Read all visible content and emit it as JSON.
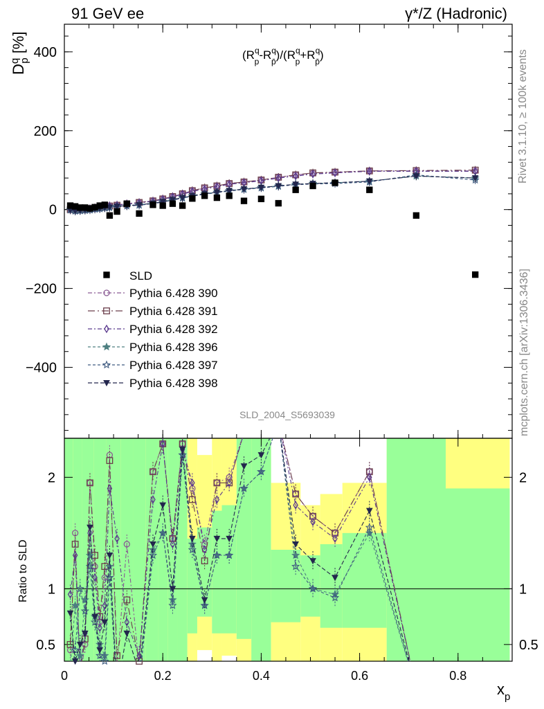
{
  "header": {
    "left": "91 GeV ee",
    "right": "γ*/Z (Hadronic)"
  },
  "side_text": {
    "rivet": "Rivet 3.1.10, ≥ 100k events",
    "mcplots": "mcplots.cern.ch [arXiv:1306.3436]"
  },
  "chart_data": {
    "type": "scatter",
    "analysis_id": "SLD_2004_S5693039",
    "formula": "(R_p^q − R_p̄^q)/(R_p^q + R_p̄^q)",
    "ylabel": "D_p^q [%]",
    "xlabel": "x_p",
    "ratio_ylabel": "Ratio to SLD",
    "xlim": [
      0,
      0.91
    ],
    "ylim": [
      -580,
      470
    ],
    "ratio_ylim": [
      0.35,
      2.35
    ],
    "x_ticks": [
      "0",
      "0.2",
      "0.4",
      "0.6",
      "0.8"
    ],
    "y_ticks": [
      "−400",
      "−200",
      "0",
      "200",
      "400"
    ],
    "ratio_ticks": [
      "0.5",
      "1",
      "2"
    ],
    "legend_position": "middle-left",
    "data": {
      "name": "SLD",
      "color": "#000000",
      "x": [
        0.012,
        0.022,
        0.032,
        0.042,
        0.052,
        0.062,
        0.072,
        0.082,
        0.092,
        0.107,
        0.127,
        0.152,
        0.18,
        0.2,
        0.22,
        0.24,
        0.26,
        0.285,
        0.31,
        0.335,
        0.365,
        0.4,
        0.435,
        0.47,
        0.505,
        0.55,
        0.62,
        0.715,
        0.835
      ],
      "y": [
        10,
        8,
        5,
        5,
        3,
        6,
        10,
        12,
        -15,
        -5,
        15,
        -10,
        12,
        10,
        15,
        10,
        28,
        35,
        30,
        35,
        22,
        27,
        16,
        50,
        60,
        68,
        50,
        -15,
        -165
      ]
    },
    "series": [
      {
        "name": "Pythia 6.428 390",
        "color": "#8a5a93",
        "marker": "circle-open",
        "dash": "6 3 2 3",
        "x": [
          0.012,
          0.022,
          0.032,
          0.042,
          0.052,
          0.062,
          0.072,
          0.082,
          0.092,
          0.107,
          0.127,
          0.152,
          0.18,
          0.2,
          0.22,
          0.24,
          0.26,
          0.285,
          0.31,
          0.335,
          0.365,
          0.4,
          0.435,
          0.47,
          0.505,
          0.55,
          0.62,
          0.715,
          0.835
        ],
        "y": [
          0,
          0,
          1,
          2,
          3,
          5,
          6,
          8,
          10,
          12,
          15,
          18,
          22,
          27,
          33,
          40,
          48,
          55,
          60,
          66,
          70,
          75,
          82,
          88,
          92,
          95,
          98,
          98,
          98
        ],
        "ratio": [
          0.45,
          1.5,
          0.2,
          0.5,
          1.95,
          1.2,
          0.7,
          1.1,
          2.2,
          0.3,
          1.4,
          0.3,
          2.05,
          2.3,
          1.45,
          2.3,
          1.9,
          1.4,
          1.95,
          2.0,
          2.4,
          2.4,
          2.5,
          1.85,
          1.65,
          1.5,
          2.05,
          0.1,
          0.1
        ]
      },
      {
        "name": "Pythia 6.428 391",
        "color": "#6a3d4a",
        "marker": "square-open",
        "dash": "10 4 2 4",
        "x": [
          0.012,
          0.022,
          0.032,
          0.042,
          0.052,
          0.062,
          0.072,
          0.082,
          0.092,
          0.107,
          0.127,
          0.152,
          0.18,
          0.2,
          0.22,
          0.24,
          0.26,
          0.285,
          0.31,
          0.335,
          0.365,
          0.4,
          0.435,
          0.47,
          0.505,
          0.55,
          0.62,
          0.715,
          0.835
        ],
        "y": [
          0,
          -1,
          0,
          1,
          2,
          4,
          5,
          7,
          9,
          11,
          14,
          18,
          22,
          27,
          33,
          40,
          48,
          55,
          60,
          66,
          70,
          75,
          82,
          88,
          93,
          95,
          98,
          99,
          100
        ],
        "ratio": [
          0.5,
          1.4,
          0.25,
          0.55,
          1.95,
          1.3,
          0.75,
          1.2,
          2.15,
          0.4,
          0.9,
          0.35,
          2.05,
          2.3,
          1.45,
          2.3,
          1.8,
          1.25,
          1.95,
          1.95,
          2.4,
          2.4,
          2.5,
          1.85,
          1.65,
          1.5,
          2.05,
          0.1,
          0.1
        ]
      },
      {
        "name": "Pythia 6.428 392",
        "color": "#5b3a8e",
        "marker": "diamond-open",
        "dash": "6 3 2 3",
        "x": [
          0.012,
          0.022,
          0.032,
          0.042,
          0.052,
          0.062,
          0.072,
          0.082,
          0.092,
          0.107,
          0.127,
          0.152,
          0.18,
          0.2,
          0.22,
          0.24,
          0.26,
          0.285,
          0.31,
          0.335,
          0.365,
          0.4,
          0.435,
          0.47,
          0.505,
          0.55,
          0.62,
          0.715,
          0.835
        ],
        "y": [
          0,
          -2,
          -1,
          0,
          2,
          3,
          5,
          7,
          9,
          11,
          14,
          17,
          21,
          26,
          32,
          39,
          46,
          52,
          58,
          64,
          68,
          73,
          80,
          85,
          90,
          93,
          97,
          97,
          97
        ],
        "ratio": [
          0.95,
          1.3,
          0.3,
          0.6,
          1.5,
          1.1,
          0.65,
          0.85,
          1.9,
          1.45,
          0.7,
          0.4,
          1.8,
          2.3,
          1.4,
          2.25,
          1.95,
          1.35,
          1.8,
          1.95,
          2.4,
          2.4,
          2.5,
          1.75,
          1.6,
          1.45,
          2.0,
          0.1,
          0.1
        ]
      },
      {
        "name": "Pythia 6.428 396",
        "color": "#4d7f80",
        "marker": "star-filled",
        "dash": "4 3",
        "x": [
          0.012,
          0.022,
          0.032,
          0.042,
          0.052,
          0.062,
          0.072,
          0.082,
          0.092,
          0.107,
          0.127,
          0.152,
          0.18,
          0.2,
          0.22,
          0.24,
          0.26,
          0.285,
          0.31,
          0.335,
          0.365,
          0.4,
          0.435,
          0.47,
          0.505,
          0.55,
          0.62,
          0.715,
          0.835
        ],
        "y": [
          0,
          -3,
          -2,
          -1,
          0,
          2,
          3,
          5,
          6,
          8,
          10,
          12,
          16,
          20,
          25,
          30,
          35,
          40,
          44,
          48,
          52,
          56,
          60,
          64,
          66,
          68,
          72,
          85,
          80
        ],
        "ratio": [
          0.3,
          0.85,
          0.4,
          0.9,
          1.3,
          0.75,
          0.5,
          0.4,
          1.2,
          0.1,
          0.15,
          0.2,
          1.35,
          1.5,
          0.9,
          2.2,
          1.4,
          0.85,
          1.3,
          1.3,
          1.9,
          2.05,
          2.5,
          1.3,
          1.0,
          0.95,
          1.5,
          0.1,
          0.1
        ]
      },
      {
        "name": "Pythia 6.428 397",
        "color": "#3e5a80",
        "marker": "star-open",
        "dash": "4 3",
        "x": [
          0.012,
          0.022,
          0.032,
          0.042,
          0.052,
          0.062,
          0.072,
          0.082,
          0.092,
          0.107,
          0.127,
          0.152,
          0.18,
          0.2,
          0.22,
          0.24,
          0.26,
          0.285,
          0.31,
          0.335,
          0.365,
          0.4,
          0.435,
          0.47,
          0.505,
          0.55,
          0.62,
          0.715,
          0.835
        ],
        "y": [
          -1,
          -4,
          -3,
          -2,
          -1,
          1,
          2,
          4,
          5,
          7,
          9,
          11,
          15,
          19,
          24,
          29,
          34,
          39,
          43,
          47,
          51,
          55,
          59,
          63,
          65,
          66,
          70,
          88,
          75
        ],
        "ratio": [
          0.2,
          0.45,
          1.0,
          0.8,
          1.2,
          0.7,
          0.4,
          0.35,
          1.1,
          0.1,
          0.2,
          0.15,
          1.3,
          1.5,
          0.85,
          2.2,
          1.35,
          0.85,
          1.3,
          1.3,
          1.9,
          2.05,
          2.5,
          1.2,
          1.0,
          0.92,
          1.55,
          0.1,
          0.1
        ]
      },
      {
        "name": "Pythia 6.428 398",
        "color": "#23264d",
        "marker": "triangle-down",
        "dash": "6 3",
        "x": [
          0.012,
          0.022,
          0.032,
          0.042,
          0.052,
          0.062,
          0.072,
          0.082,
          0.092,
          0.107,
          0.127,
          0.152,
          0.18,
          0.2,
          0.22,
          0.24,
          0.26,
          0.285,
          0.31,
          0.335,
          0.365,
          0.4,
          0.435,
          0.47,
          0.505,
          0.55,
          0.62,
          0.715,
          0.835
        ],
        "y": [
          -1,
          -3,
          -2,
          -1,
          0,
          2,
          3,
          5,
          6,
          8,
          10,
          12,
          16,
          20,
          25,
          30,
          35,
          40,
          44,
          48,
          52,
          56,
          60,
          64,
          66,
          68,
          72,
          85,
          80
        ],
        "ratio": [
          0.78,
          0.35,
          0.5,
          0.6,
          1.55,
          0.75,
          0.45,
          0.7,
          1.3,
          0.1,
          0.6,
          0.25,
          1.4,
          1.75,
          1.0,
          2.25,
          1.45,
          0.9,
          1.45,
          1.45,
          2.1,
          2.2,
          2.5,
          1.4,
          1.25,
          1.1,
          1.7,
          0.1,
          0.1
        ]
      }
    ],
    "ratio_bands": [
      {
        "x0": 0.0,
        "x1": 0.018,
        "green": [
          0.0,
          2.5
        ],
        "yellow": [
          0.0,
          2.5
        ]
      },
      {
        "x0": 0.018,
        "x1": 0.036,
        "green": [
          0.0,
          2.5
        ],
        "yellow": [
          0.0,
          2.5
        ]
      },
      {
        "x0": 0.036,
        "x1": 0.06,
        "green": [
          0.0,
          2.5
        ],
        "yellow": [
          0.0,
          2.5
        ]
      },
      {
        "x0": 0.06,
        "x1": 0.085,
        "green": [
          0.0,
          2.5
        ],
        "yellow": [
          0.0,
          2.5
        ]
      },
      {
        "x0": 0.085,
        "x1": 0.115,
        "green": [
          0.0,
          2.5
        ],
        "yellow": [
          0.0,
          2.5
        ]
      },
      {
        "x0": 0.115,
        "x1": 0.14,
        "green": [
          0.0,
          2.5
        ],
        "yellow": [
          0.0,
          2.5
        ]
      },
      {
        "x0": 0.14,
        "x1": 0.165,
        "green": [
          0.0,
          2.5
        ],
        "yellow": [
          0.0,
          2.5
        ]
      },
      {
        "x0": 0.165,
        "x1": 0.19,
        "green": [
          0.0,
          2.5
        ],
        "yellow": [
          0.0,
          2.5
        ]
      },
      {
        "x0": 0.19,
        "x1": 0.21,
        "green": [
          0.0,
          2.5
        ],
        "yellow": [
          0.0,
          2.5
        ]
      },
      {
        "x0": 0.21,
        "x1": 0.23,
        "green": [
          0.0,
          2.5
        ],
        "yellow": [
          0.0,
          2.5
        ]
      },
      {
        "x0": 0.23,
        "x1": 0.25,
        "green": [
          0.35,
          2.5
        ],
        "yellow": [
          0.0,
          2.5
        ]
      },
      {
        "x0": 0.25,
        "x1": 0.27,
        "green": [
          0.6,
          1.45
        ],
        "yellow": [
          0.35,
          2.5
        ]
      },
      {
        "x0": 0.27,
        "x1": 0.3,
        "green": [
          0.75,
          1.55
        ],
        "yellow": [
          0.45,
          2.2
        ]
      },
      {
        "x0": 0.3,
        "x1": 0.32,
        "green": [
          0.6,
          1.7
        ],
        "yellow": [
          0.35,
          2.5
        ]
      },
      {
        "x0": 0.32,
        "x1": 0.35,
        "green": [
          0.6,
          1.75
        ],
        "yellow": [
          0.4,
          2.5
        ]
      },
      {
        "x0": 0.35,
        "x1": 0.38,
        "green": [
          0.55,
          2.5
        ],
        "yellow": [
          0.35,
          2.5
        ]
      },
      {
        "x0": 0.38,
        "x1": 0.42,
        "green": [
          0.35,
          2.5
        ],
        "yellow": [
          0.0,
          2.5
        ]
      },
      {
        "x0": 0.42,
        "x1": 0.48,
        "green": [
          0.7,
          1.35
        ],
        "yellow": [
          0.35,
          1.95
        ]
      },
      {
        "x0": 0.48,
        "x1": 0.52,
        "green": [
          0.75,
          1.3
        ],
        "yellow": [
          0.35,
          1.75
        ]
      },
      {
        "x0": 0.52,
        "x1": 0.565,
        "green": [
          0.65,
          1.4
        ],
        "yellow": [
          0.35,
          1.85
        ]
      },
      {
        "x0": 0.565,
        "x1": 0.655,
        "green": [
          0.65,
          1.5
        ],
        "yellow": [
          0.35,
          1.95
        ]
      },
      {
        "x0": 0.655,
        "x1": 0.775,
        "green": [
          0.0,
          2.5
        ],
        "yellow": [
          0.0,
          2.5
        ]
      },
      {
        "x0": 0.775,
        "x1": 0.905,
        "green": [
          0.0,
          1.9
        ],
        "yellow": [
          0.0,
          2.5
        ]
      }
    ]
  }
}
